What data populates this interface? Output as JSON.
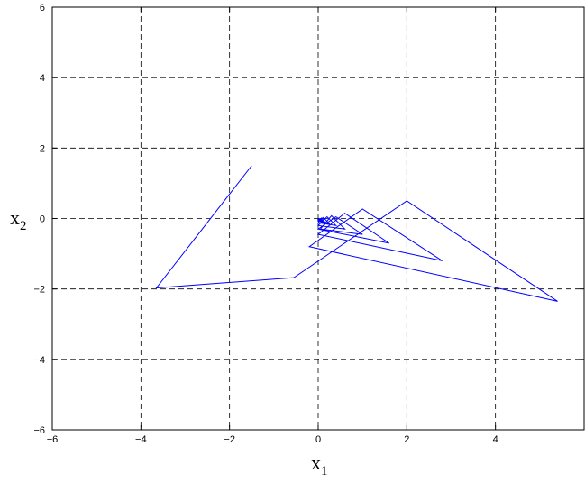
{
  "chart_data": {
    "type": "line",
    "title": "",
    "xlabel": "x",
    "xlabel_sub": "1",
    "ylabel": "x",
    "ylabel_sub": "2",
    "xlim": [
      -6,
      6
    ],
    "ylim": [
      -6,
      6
    ],
    "xticks": [
      -6,
      -4,
      -2,
      0,
      2,
      4
    ],
    "yticks": [
      -6,
      -4,
      -2,
      0,
      2,
      4,
      6
    ],
    "xtick_labels": [
      "−6",
      "−4",
      "−2",
      "0",
      "2",
      "4"
    ],
    "ytick_labels": [
      "−6",
      "−4",
      "−2",
      "0",
      "2",
      "4",
      "6"
    ],
    "grid": true,
    "grid_style": "dashed",
    "line_color": "#0000ff",
    "series": [
      {
        "x": [
          -1.5,
          -3.65,
          -0.55,
          2.0,
          5.4,
          -0.2,
          1.0,
          2.8,
          0.0,
          0.6,
          1.6,
          0.0,
          0.4,
          1.0,
          0.05,
          0.3,
          0.6,
          0.0,
          0.2,
          0.4,
          0.0,
          0.12,
          0.25,
          0.0,
          0.08,
          0.15,
          0.0,
          0.05,
          0.1,
          0.0,
          0.03,
          0.05
        ],
        "y": [
          1.5,
          -1.97,
          -1.68,
          0.5,
          -2.35,
          -0.8,
          0.27,
          -1.2,
          -0.45,
          0.15,
          -0.7,
          -0.3,
          0.05,
          -0.45,
          -0.3,
          0.08,
          -0.3,
          -0.2,
          0.05,
          -0.2,
          -0.12,
          0.03,
          -0.15,
          -0.08,
          0.02,
          -0.1,
          -0.05,
          0.0,
          -0.06,
          -0.02,
          0.0,
          -0.03
        ]
      }
    ]
  }
}
